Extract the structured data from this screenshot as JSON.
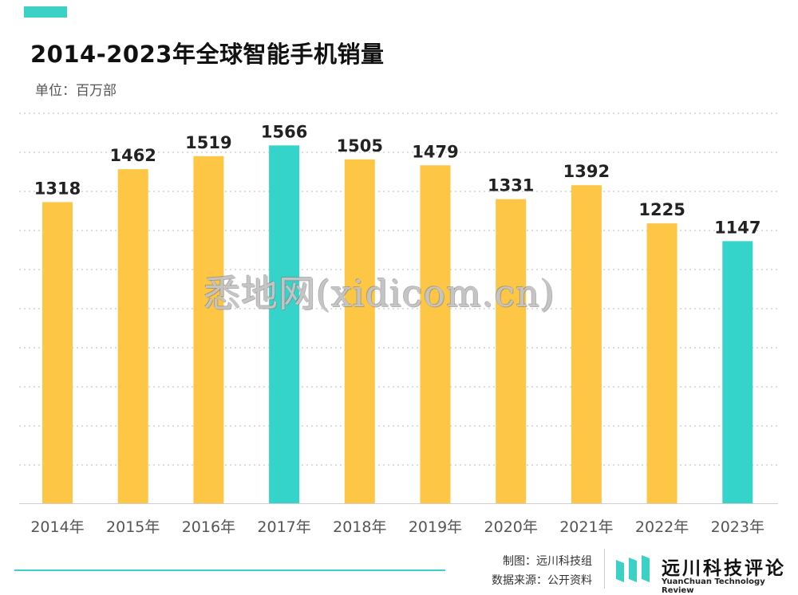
{
  "header": {
    "title": "2014-2023年全球智能手机销量",
    "unit": "单位：百万部"
  },
  "colors": {
    "bar_default": "#fdc645",
    "bar_highlight": "#34d4cb",
    "accent": "#3bd1c7",
    "grid": "#dddddd"
  },
  "chart_data": {
    "type": "bar",
    "title": "2014-2023年全球智能手机销量",
    "ylabel": "单位：百万部",
    "xlabel": "",
    "categories": [
      "2014年",
      "2015年",
      "2016年",
      "2017年",
      "2018年",
      "2019年",
      "2020年",
      "2021年",
      "2022年",
      "2023年"
    ],
    "values": [
      1318,
      1462,
      1519,
      1566,
      1505,
      1479,
      1331,
      1392,
      1225,
      1147
    ],
    "highlight": [
      "2017年",
      "2023年"
    ],
    "grid": true,
    "legend": "none"
  },
  "watermark": "悉地网(xidicom.cn)",
  "footer": {
    "credit_maker": "制图：远川科技组",
    "credit_source": "数据来源：公开资料",
    "logo_cn": "远川科技评论",
    "logo_en": "YuanChuan Technology Review"
  }
}
